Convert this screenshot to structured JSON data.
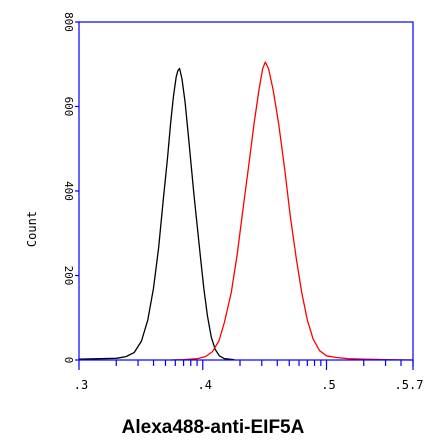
{
  "chart_data": {
    "type": "line",
    "title": "",
    "xlabel": "Alexa488-anti-EIF5A",
    "ylabel": "Count",
    "x_scale": "log",
    "xlim": [
      1000,
      500000
    ],
    "ylim": [
      0,
      800
    ],
    "x_tick_labels": [
      ".3",
      ".4",
      ".5",
      ".5.7"
    ],
    "x_tick_values": [
      1000,
      10000,
      100000,
      500000
    ],
    "y_ticks": [
      0,
      200,
      400,
      600,
      800
    ],
    "y_tick_labels": [
      "0",
      "200",
      "400",
      "600",
      "800"
    ],
    "grid": false,
    "legend": "none",
    "colors": {
      "axes": "#0000ff",
      "text": "#000000"
    },
    "series": [
      {
        "color": "#000000",
        "points": [
          [
            1000,
            2
          ],
          [
            1500,
            3
          ],
          [
            2000,
            4
          ],
          [
            2400,
            8
          ],
          [
            2800,
            18
          ],
          [
            3200,
            45
          ],
          [
            3600,
            95
          ],
          [
            4000,
            170
          ],
          [
            4400,
            265
          ],
          [
            4800,
            380
          ],
          [
            5200,
            480
          ],
          [
            5500,
            560
          ],
          [
            5800,
            625
          ],
          [
            6100,
            670
          ],
          [
            6300,
            685
          ],
          [
            6500,
            690
          ],
          [
            6800,
            665
          ],
          [
            7200,
            610
          ],
          [
            7600,
            540
          ],
          [
            8000,
            470
          ],
          [
            8500,
            390
          ],
          [
            9000,
            320
          ],
          [
            9600,
            240
          ],
          [
            10200,
            170
          ],
          [
            10900,
            105
          ],
          [
            11700,
            55
          ],
          [
            12600,
            25
          ],
          [
            13600,
            10
          ],
          [
            15000,
            3
          ],
          [
            18000,
            1
          ]
        ]
      },
      {
        "color": "#ff0000",
        "points": [
          [
            5500,
            0
          ],
          [
            7000,
            1
          ],
          [
            9000,
            3
          ],
          [
            10500,
            8
          ],
          [
            12000,
            20
          ],
          [
            13500,
            45
          ],
          [
            15000,
            90
          ],
          [
            17000,
            160
          ],
          [
            19000,
            250
          ],
          [
            21000,
            350
          ],
          [
            23500,
            460
          ],
          [
            26000,
            560
          ],
          [
            28500,
            640
          ],
          [
            30500,
            690
          ],
          [
            32000,
            705
          ],
          [
            34000,
            690
          ],
          [
            37000,
            640
          ],
          [
            41000,
            560
          ],
          [
            46000,
            450
          ],
          [
            51000,
            340
          ],
          [
            57000,
            240
          ],
          [
            63000,
            160
          ],
          [
            70000,
            95
          ],
          [
            78000,
            50
          ],
          [
            88000,
            22
          ],
          [
            100000,
            10
          ],
          [
            120000,
            6
          ],
          [
            150000,
            3
          ],
          [
            200000,
            2
          ],
          [
            300000,
            1
          ],
          [
            500000,
            0
          ]
        ]
      }
    ]
  }
}
